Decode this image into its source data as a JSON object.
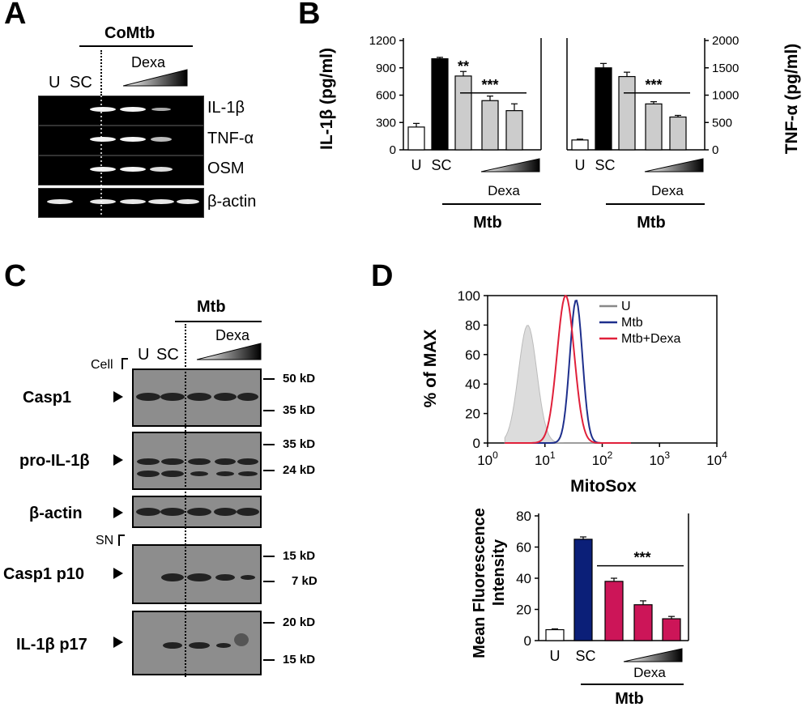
{
  "panels": {
    "A": "A",
    "B": "B",
    "C": "C",
    "D": "D"
  },
  "panelA": {
    "header": "CoMtb",
    "lanes": [
      "U",
      "SC"
    ],
    "dexa": "Dexa",
    "genes": [
      "IL-1β",
      "TNF-α",
      "OSM",
      "β-actin"
    ]
  },
  "panelB": {
    "left_ylabel": "IL-1β (pg/ml)",
    "right_ylabel": "TNF-α (pg/ml)",
    "xlabels": [
      "U",
      "SC"
    ],
    "dexa": "Dexa",
    "group": "Mtb",
    "left_ticks": [
      "1200",
      "900",
      "600",
      "300",
      "0"
    ],
    "right_ticks": [
      "2000",
      "1500",
      "1000",
      "500",
      "0"
    ],
    "sig_double": "**",
    "sig_triple": "***"
  },
  "panelC": {
    "header": "Mtb",
    "lanes": [
      "U",
      "SC"
    ],
    "dexa": "Dexa",
    "cell": "Cell",
    "sn": "SN",
    "bands": [
      "Casp1",
      "pro-IL-1β",
      "β-actin",
      "Casp1 p10",
      "IL-1β p17"
    ],
    "kd": [
      "50 kD",
      "35 kD",
      "35 kD",
      "24 kD",
      "15 kD",
      "7 kD",
      "20 kD",
      "15 kD"
    ]
  },
  "panelD": {
    "hist_ylabel": "% of MAX",
    "hist_xlabel": "MitoSox",
    "hist_yticks": [
      "100",
      "80",
      "60",
      "40",
      "20",
      "0"
    ],
    "legend": [
      "U",
      "Mtb",
      "Mtb+Dexa"
    ],
    "bar_ylabel_line1": "Mean Fluorescence",
    "bar_ylabel_line2": "Intensity",
    "bar_ticks": [
      "80",
      "60",
      "40",
      "20",
      "0"
    ],
    "xlabels": [
      "U",
      "SC"
    ],
    "dexa": "Dexa",
    "group": "Mtb",
    "sig": "***"
  },
  "chart_data": [
    {
      "type": "bar",
      "title": "",
      "ylabel": "IL-1β (pg/ml)",
      "ylim": [
        0,
        1200
      ],
      "categories": [
        "U",
        "SC",
        "Dexa low",
        "Dexa mid",
        "Dexa high"
      ],
      "values": [
        250,
        1000,
        810,
        540,
        430
      ],
      "errors": [
        40,
        15,
        50,
        50,
        75
      ],
      "colors": [
        "#ffffff",
        "#000000",
        "#cccccc",
        "#cccccc",
        "#cccccc"
      ]
    },
    {
      "type": "bar",
      "title": "",
      "ylabel": "TNF-α (pg/ml)",
      "ylim": [
        0,
        2000
      ],
      "categories": [
        "U",
        "SC",
        "Dexa low",
        "Dexa mid",
        "Dexa high"
      ],
      "values": [
        180,
        1500,
        1340,
        840,
        600
      ],
      "errors": [
        15,
        80,
        80,
        40,
        30
      ],
      "colors": [
        "#ffffff",
        "#000000",
        "#cccccc",
        "#cccccc",
        "#cccccc"
      ]
    },
    {
      "type": "line",
      "title": "",
      "xlabel": "MitoSox",
      "ylabel": "% of MAX",
      "xscale": "log",
      "xlim": [
        1,
        10000
      ],
      "ylim": [
        0,
        100
      ],
      "series": [
        {
          "name": "U",
          "color": "#bbbbbb",
          "peak_x": 5,
          "peak_y": 80
        },
        {
          "name": "Mtb",
          "color": "#1e2f8c",
          "peak_x": 35,
          "peak_y": 97
        },
        {
          "name": "Mtb+Dexa",
          "color": "#e0203a",
          "peak_x": 23,
          "peak_y": 100
        }
      ]
    },
    {
      "type": "bar",
      "title": "",
      "ylabel": "Mean Fluorescence Intensity",
      "ylim": [
        0,
        80
      ],
      "categories": [
        "U",
        "SC",
        "Dexa low",
        "Dexa mid",
        "Dexa high"
      ],
      "values": [
        7,
        65,
        38,
        23,
        14
      ],
      "errors": [
        0.5,
        1.5,
        2,
        2.5,
        1.5
      ],
      "colors": [
        "#ffffff",
        "#0b1f78",
        "#cc1558",
        "#cc1558",
        "#cc1558"
      ]
    }
  ]
}
